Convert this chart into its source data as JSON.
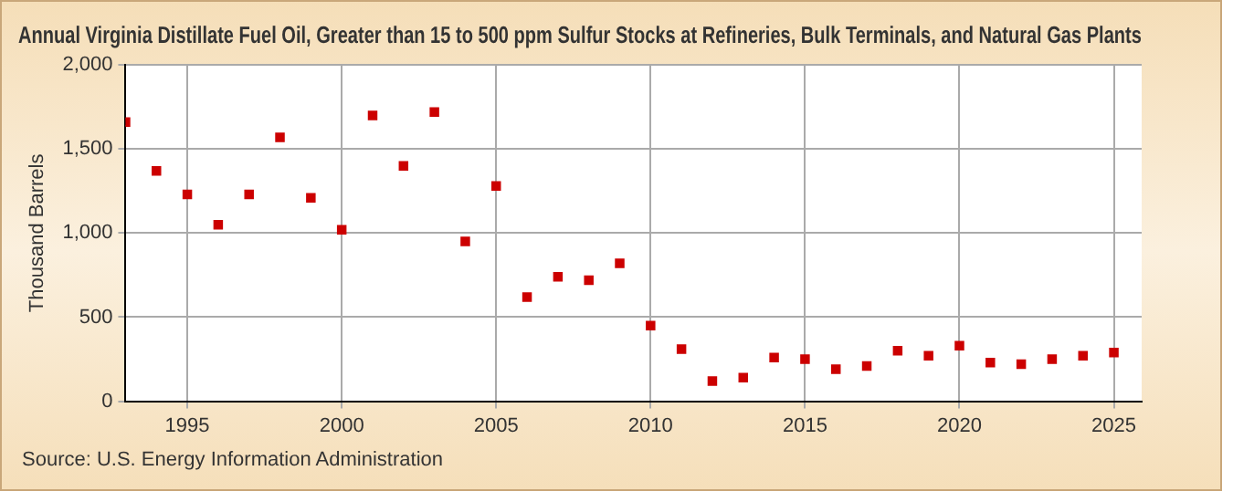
{
  "chart_data": {
    "type": "scatter",
    "title": "Annual Virginia Distillate Fuel Oil, Greater than 15 to 500 ppm Sulfur Stocks at Refineries, Bulk Terminals, and Natural Gas Plants",
    "ylabel": "Thousand Barrels",
    "annotations": [
      "Source: U.S. Energy Information Administration"
    ],
    "x": [
      1993,
      1994,
      1995,
      1996,
      1997,
      1998,
      1999,
      2000,
      2001,
      2002,
      2003,
      2004,
      2005,
      2006,
      2007,
      2008,
      2009,
      2010,
      2011,
      2012,
      2013,
      2014,
      2015,
      2016,
      2017,
      2018,
      2019,
      2020,
      2021,
      2022,
      2023,
      2024,
      2025
    ],
    "series": [
      {
        "color": "#cc0000",
        "values": [
          1660,
          1370,
          1230,
          1050,
          1230,
          1570,
          1210,
          1020,
          1700,
          1400,
          1720,
          950,
          1280,
          620,
          740,
          720,
          820,
          450,
          310,
          120,
          140,
          260,
          250,
          190,
          210,
          300,
          270,
          330,
          230,
          220,
          250,
          270,
          290
        ]
      }
    ],
    "xlim": [
      1993,
      2025.9
    ],
    "xticks": [
      1995,
      2000,
      2005,
      2010,
      2015,
      2020,
      2025
    ],
    "ylim": [
      0,
      2000
    ],
    "yticks": [
      {
        "value": 0,
        "label": "0"
      },
      {
        "value": 500,
        "label": "500"
      },
      {
        "value": 1000,
        "label": "1,000"
      },
      {
        "value": 1500,
        "label": "1,500"
      },
      {
        "value": 2000,
        "label": "2,000"
      }
    ],
    "grid": true,
    "marker": "square",
    "legend": false
  }
}
